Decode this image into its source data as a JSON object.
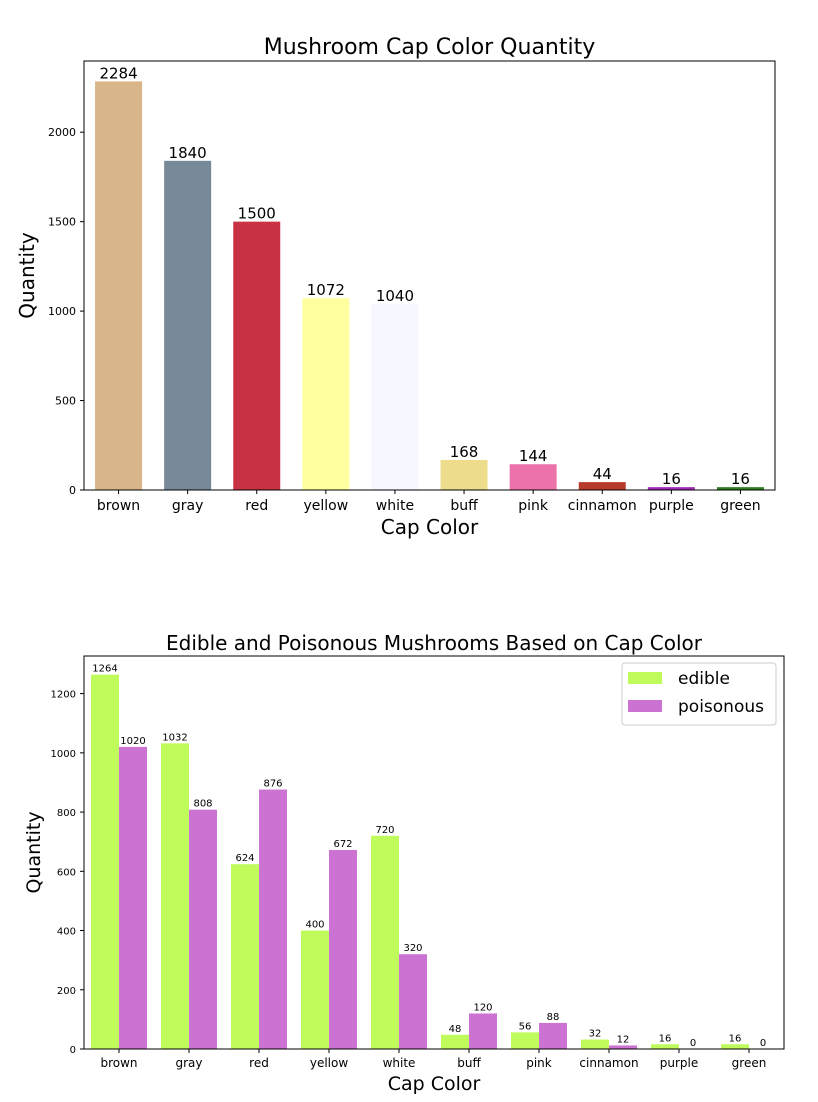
{
  "chart_data": [
    {
      "type": "bar",
      "title": "Mushroom Cap Color Quantity",
      "xlabel": "Cap Color",
      "ylabel": "Quantity",
      "categories": [
        "brown",
        "gray",
        "red",
        "yellow",
        "white",
        "buff",
        "pink",
        "cinnamon",
        "purple",
        "green"
      ],
      "values": [
        2284,
        1840,
        1500,
        1072,
        1040,
        168,
        144,
        44,
        16,
        16
      ],
      "colors": [
        "#d8b68a",
        "#778899",
        "#c93242",
        "#ffff9f",
        "#f7f7ff",
        "#ecdc8c",
        "#ed72ab",
        "#b83a2a",
        "#a02ab8",
        "#2e7f1f"
      ],
      "yticks": [
        0,
        500,
        1000,
        1500,
        2000
      ],
      "ylim": [
        0,
        2398
      ],
      "grid": false,
      "data_labels": true
    },
    {
      "type": "bar",
      "title": "Edible and Poisonous Mushrooms Based on Cap Color",
      "xlabel": "Cap Color",
      "ylabel": "Quantity",
      "categories": [
        "brown",
        "gray",
        "red",
        "yellow",
        "white",
        "buff",
        "pink",
        "cinnamon",
        "purple",
        "green"
      ],
      "series": [
        {
          "name": "edible",
          "color": "#bffb5a",
          "values": [
            1264,
            1032,
            624,
            400,
            720,
            48,
            56,
            32,
            16,
            16
          ]
        },
        {
          "name": "poisonous",
          "color": "#cb72d2",
          "values": [
            1020,
            808,
            876,
            672,
            320,
            120,
            88,
            12,
            0,
            0
          ]
        }
      ],
      "yticks": [
        0,
        200,
        400,
        600,
        800,
        1000,
        1200
      ],
      "ylim": [
        0,
        1327
      ],
      "grid": false,
      "legend": "top-right",
      "data_labels": true
    }
  ]
}
